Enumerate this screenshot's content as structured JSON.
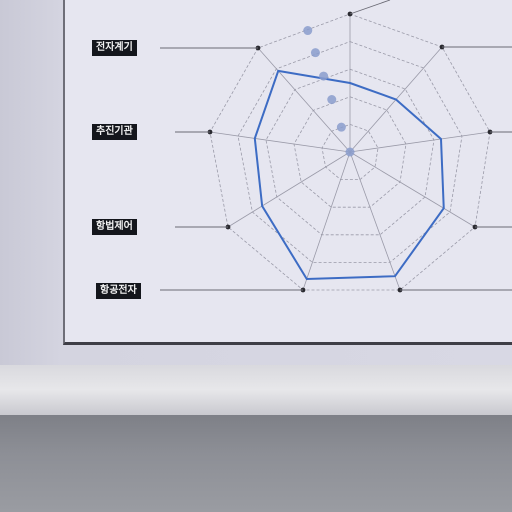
{
  "chart_data": {
    "type": "radar",
    "axes": [
      "",
      "",
      "전자계기",
      "추진기관",
      "항법제어",
      "항공전자",
      "",
      "",
      ""
    ],
    "left_labels": [
      "전자계기",
      "추진기관",
      "항법제어",
      "항공전자"
    ],
    "rings": 5,
    "series": [
      {
        "values": [
          0.5,
          0.5,
          0.65,
          0.75,
          0.9,
          0.92,
          0.72,
          0.68,
          0.78
        ]
      }
    ],
    "secondary_points": [
      0.88,
      0.72,
      0.55,
      0.38,
      0.18
    ],
    "colors": {
      "series": "#3d6cc4",
      "grid": "#9a9aa8",
      "points": "#8a9ccc",
      "axis_dot": "#2a2a30"
    }
  }
}
